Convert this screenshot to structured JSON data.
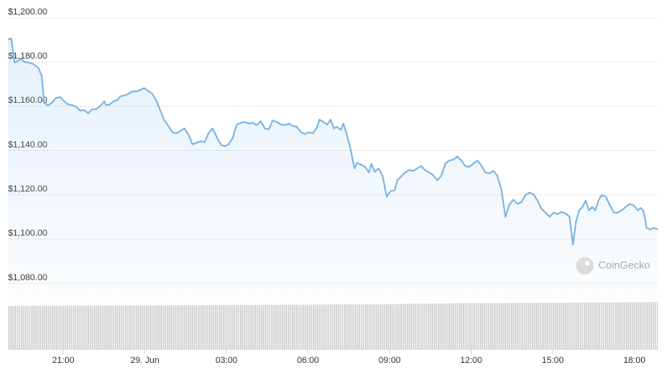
{
  "chart_data": {
    "type": "line",
    "watermark": "CoinGecko",
    "color": "#7eb5e2",
    "grid": true,
    "xlim": [
      18.97,
      42.86
    ],
    "xticks": [
      {
        "value": 21,
        "label": "21:00"
      },
      {
        "value": 24,
        "label": "29. Jun"
      },
      {
        "value": 27,
        "label": "03:00"
      },
      {
        "value": 30,
        "label": "06:00"
      },
      {
        "value": 33,
        "label": "09:00"
      },
      {
        "value": 36,
        "label": "12:00"
      },
      {
        "value": 39,
        "label": "15:00"
      },
      {
        "value": 42,
        "label": "18:00"
      }
    ],
    "ylim": [
      1080,
      1200
    ],
    "yticks": [
      {
        "value": 1080,
        "label": "$1,080.00"
      },
      {
        "value": 1100,
        "label": "$1,100.00"
      },
      {
        "value": 1120,
        "label": "$1,120.00"
      },
      {
        "value": 1140,
        "label": "$1,140.00"
      },
      {
        "value": 1160,
        "label": "$1,160.00"
      },
      {
        "value": 1180,
        "label": "$1,180.00"
      },
      {
        "value": 1200,
        "label": "$1,200.00"
      }
    ],
    "x": [
      18.97,
      19.09,
      19.21,
      19.32,
      19.44,
      19.56,
      19.74,
      19.91,
      20.09,
      20.21,
      20.3,
      20.44,
      20.59,
      20.74,
      20.89,
      21.03,
      21.18,
      21.33,
      21.48,
      21.62,
      21.77,
      21.92,
      22.07,
      22.21,
      22.36,
      22.51,
      22.57,
      22.72,
      22.86,
      22.98,
      23.1,
      23.25,
      23.39,
      23.54,
      23.69,
      23.84,
      23.98,
      24.1,
      24.28,
      24.43,
      24.57,
      24.72,
      24.87,
      25.02,
      25.16,
      25.31,
      25.46,
      25.61,
      25.75,
      25.9,
      26.05,
      26.2,
      26.34,
      26.49,
      26.58,
      26.7,
      26.82,
      26.93,
      27.08,
      27.23,
      27.38,
      27.52,
      27.67,
      27.82,
      27.97,
      28.11,
      28.26,
      28.41,
      28.56,
      28.7,
      28.85,
      29.0,
      29.15,
      29.29,
      29.44,
      29.59,
      29.74,
      29.88,
      30.03,
      30.18,
      30.33,
      30.42,
      30.56,
      30.71,
      30.83,
      30.95,
      31.06,
      31.21,
      31.3,
      31.42,
      31.54,
      31.71,
      31.8,
      31.95,
      32.1,
      32.24,
      32.33,
      32.45,
      32.6,
      32.75,
      32.89,
      33.04,
      33.19,
      33.28,
      33.42,
      33.57,
      33.72,
      33.87,
      34.01,
      34.16,
      34.31,
      34.46,
      34.6,
      34.75,
      34.9,
      35.05,
      35.19,
      35.34,
      35.49,
      35.64,
      35.78,
      35.93,
      36.08,
      36.23,
      36.37,
      36.52,
      36.67,
      36.82,
      36.96,
      37.11,
      37.26,
      37.4,
      37.55,
      37.7,
      37.85,
      37.99,
      38.14,
      38.29,
      38.44,
      38.58,
      38.73,
      38.88,
      39.03,
      39.17,
      39.32,
      39.47,
      39.62,
      39.74,
      39.86,
      39.97,
      40.09,
      40.21,
      40.33,
      40.45,
      40.56,
      40.68,
      40.8,
      40.95,
      41.09,
      41.24,
      41.39,
      41.54,
      41.68,
      41.83,
      41.98,
      42.13,
      42.22,
      42.33,
      42.45,
      42.57,
      42.72,
      42.86
    ],
    "values": [
      1190.2,
      1190.6,
      1179.7,
      1180.4,
      1181.5,
      1180.1,
      1179.7,
      1179.0,
      1177.2,
      1173.6,
      1161.6,
      1160.5,
      1161.6,
      1163.8,
      1164.1,
      1162.3,
      1160.9,
      1160.5,
      1159.8,
      1158.0,
      1158.3,
      1156.9,
      1158.7,
      1158.7,
      1160.1,
      1162.3,
      1160.5,
      1160.9,
      1162.3,
      1162.7,
      1164.5,
      1164.9,
      1165.6,
      1166.7,
      1166.7,
      1167.4,
      1168.2,
      1167.1,
      1165.6,
      1162.3,
      1158.0,
      1153.6,
      1151.1,
      1148.2,
      1147.8,
      1148.9,
      1150.0,
      1147.1,
      1142.8,
      1143.5,
      1144.2,
      1143.8,
      1147.8,
      1150.0,
      1147.8,
      1144.6,
      1142.4,
      1142.0,
      1142.8,
      1145.7,
      1151.8,
      1152.5,
      1152.9,
      1152.2,
      1152.5,
      1151.5,
      1153.3,
      1150.0,
      1149.6,
      1153.6,
      1152.9,
      1151.8,
      1151.5,
      1152.2,
      1151.1,
      1150.7,
      1148.2,
      1147.5,
      1148.2,
      1147.8,
      1150.4,
      1154.0,
      1152.9,
      1151.8,
      1154.0,
      1150.0,
      1150.7,
      1149.3,
      1152.2,
      1147.5,
      1142.0,
      1131.9,
      1134.4,
      1133.7,
      1132.6,
      1130.1,
      1134.1,
      1130.4,
      1131.9,
      1128.3,
      1119.2,
      1121.7,
      1122.1,
      1126.5,
      1128.3,
      1130.1,
      1131.2,
      1130.8,
      1131.9,
      1133.0,
      1131.2,
      1130.1,
      1129.0,
      1126.5,
      1128.6,
      1134.1,
      1135.5,
      1135.9,
      1137.3,
      1135.5,
      1133.0,
      1132.6,
      1134.1,
      1135.5,
      1133.3,
      1130.1,
      1129.7,
      1130.8,
      1128.6,
      1122.5,
      1110.1,
      1115.6,
      1117.8,
      1115.9,
      1116.7,
      1119.9,
      1121.0,
      1120.3,
      1117.4,
      1113.8,
      1112.0,
      1110.1,
      1112.0,
      1111.2,
      1112.3,
      1111.6,
      1110.1,
      1097.5,
      1108.3,
      1113.0,
      1114.5,
      1117.4,
      1113.0,
      1114.5,
      1113.0,
      1117.4,
      1119.9,
      1119.2,
      1115.6,
      1112.0,
      1112.0,
      1113.0,
      1114.5,
      1115.9,
      1115.2,
      1113.0,
      1114.1,
      1113.0,
      1105.1,
      1104.4,
      1105.1,
      1104.4
    ]
  }
}
